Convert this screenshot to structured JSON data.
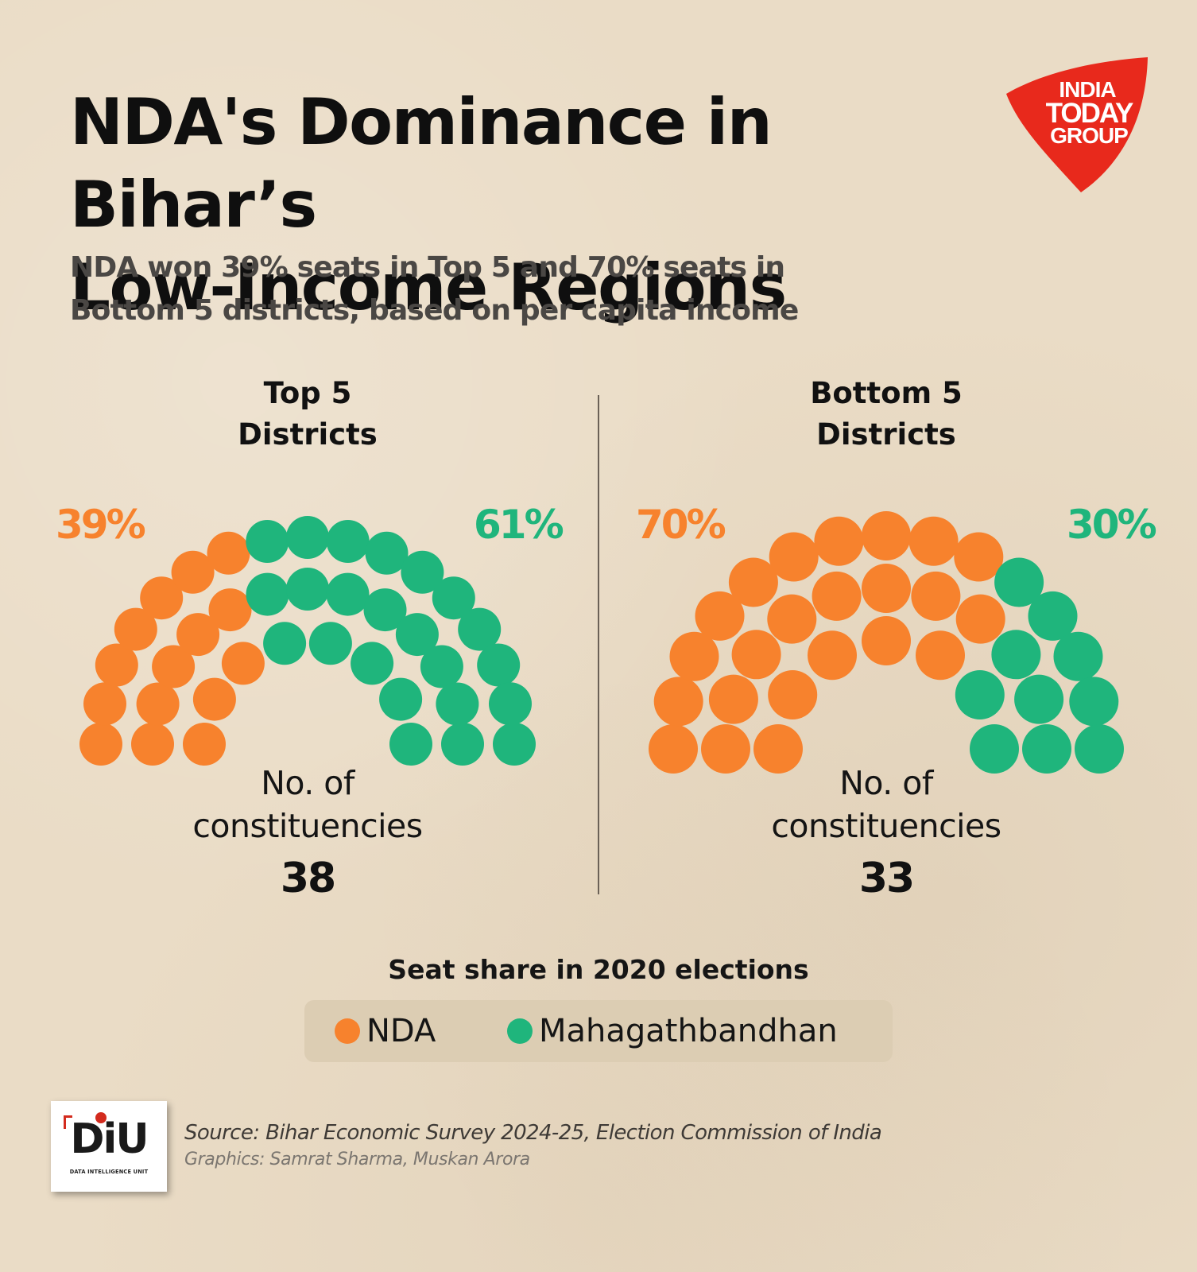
{
  "title_line1": "NDA's Dominance in Bihar’s",
  "title_line2": "Low-Income Regions",
  "subtitle_line1": "NDA won 39% seats in Top 5 and 70% seats in",
  "subtitle_line2": "Bottom 5 districts, based on per capita income",
  "logo": {
    "line1": "INDIA",
    "line2": "TODAY",
    "line3": "GROUP",
    "color": "#e8291c"
  },
  "colors": {
    "nda": "#f7822d",
    "mgb": "#1fb57c",
    "divider": "#6b6157"
  },
  "chart_data": [
    {
      "type": "parliament",
      "title_line1": "Top 5",
      "title_line2": "Districts",
      "categories": [
        "NDA",
        "Mahagathbandhan"
      ],
      "values": [
        15,
        23
      ],
      "percent_labels": [
        "39%",
        "61%"
      ],
      "constituencies_label_line1": "No. of",
      "constituencies_label_line2": "constituencies",
      "total": "38"
    },
    {
      "type": "parliament",
      "title_line1": "Bottom 5",
      "title_line2": "Districts",
      "categories": [
        "NDA",
        "Mahagathbandhan"
      ],
      "values": [
        23,
        10
      ],
      "percent_labels": [
        "70%",
        "30%"
      ],
      "constituencies_label_line1": "No. of",
      "constituencies_label_line2": "constituencies",
      "total": "33"
    }
  ],
  "legend": {
    "title": "Seat share in 2020 elections",
    "items": [
      {
        "label": "NDA",
        "color": "#f7822d"
      },
      {
        "label": "Mahagathbandhan",
        "color": "#1fb57c"
      }
    ]
  },
  "footer": {
    "badge_letters": "DiU",
    "badge_sub": "DATA INTELLIGENCE UNIT",
    "source": "Source: Bihar Economic Survey 2024-25, Election Commission of India",
    "graphics": "Graphics: Samrat Sharma, Muskan Arora"
  }
}
